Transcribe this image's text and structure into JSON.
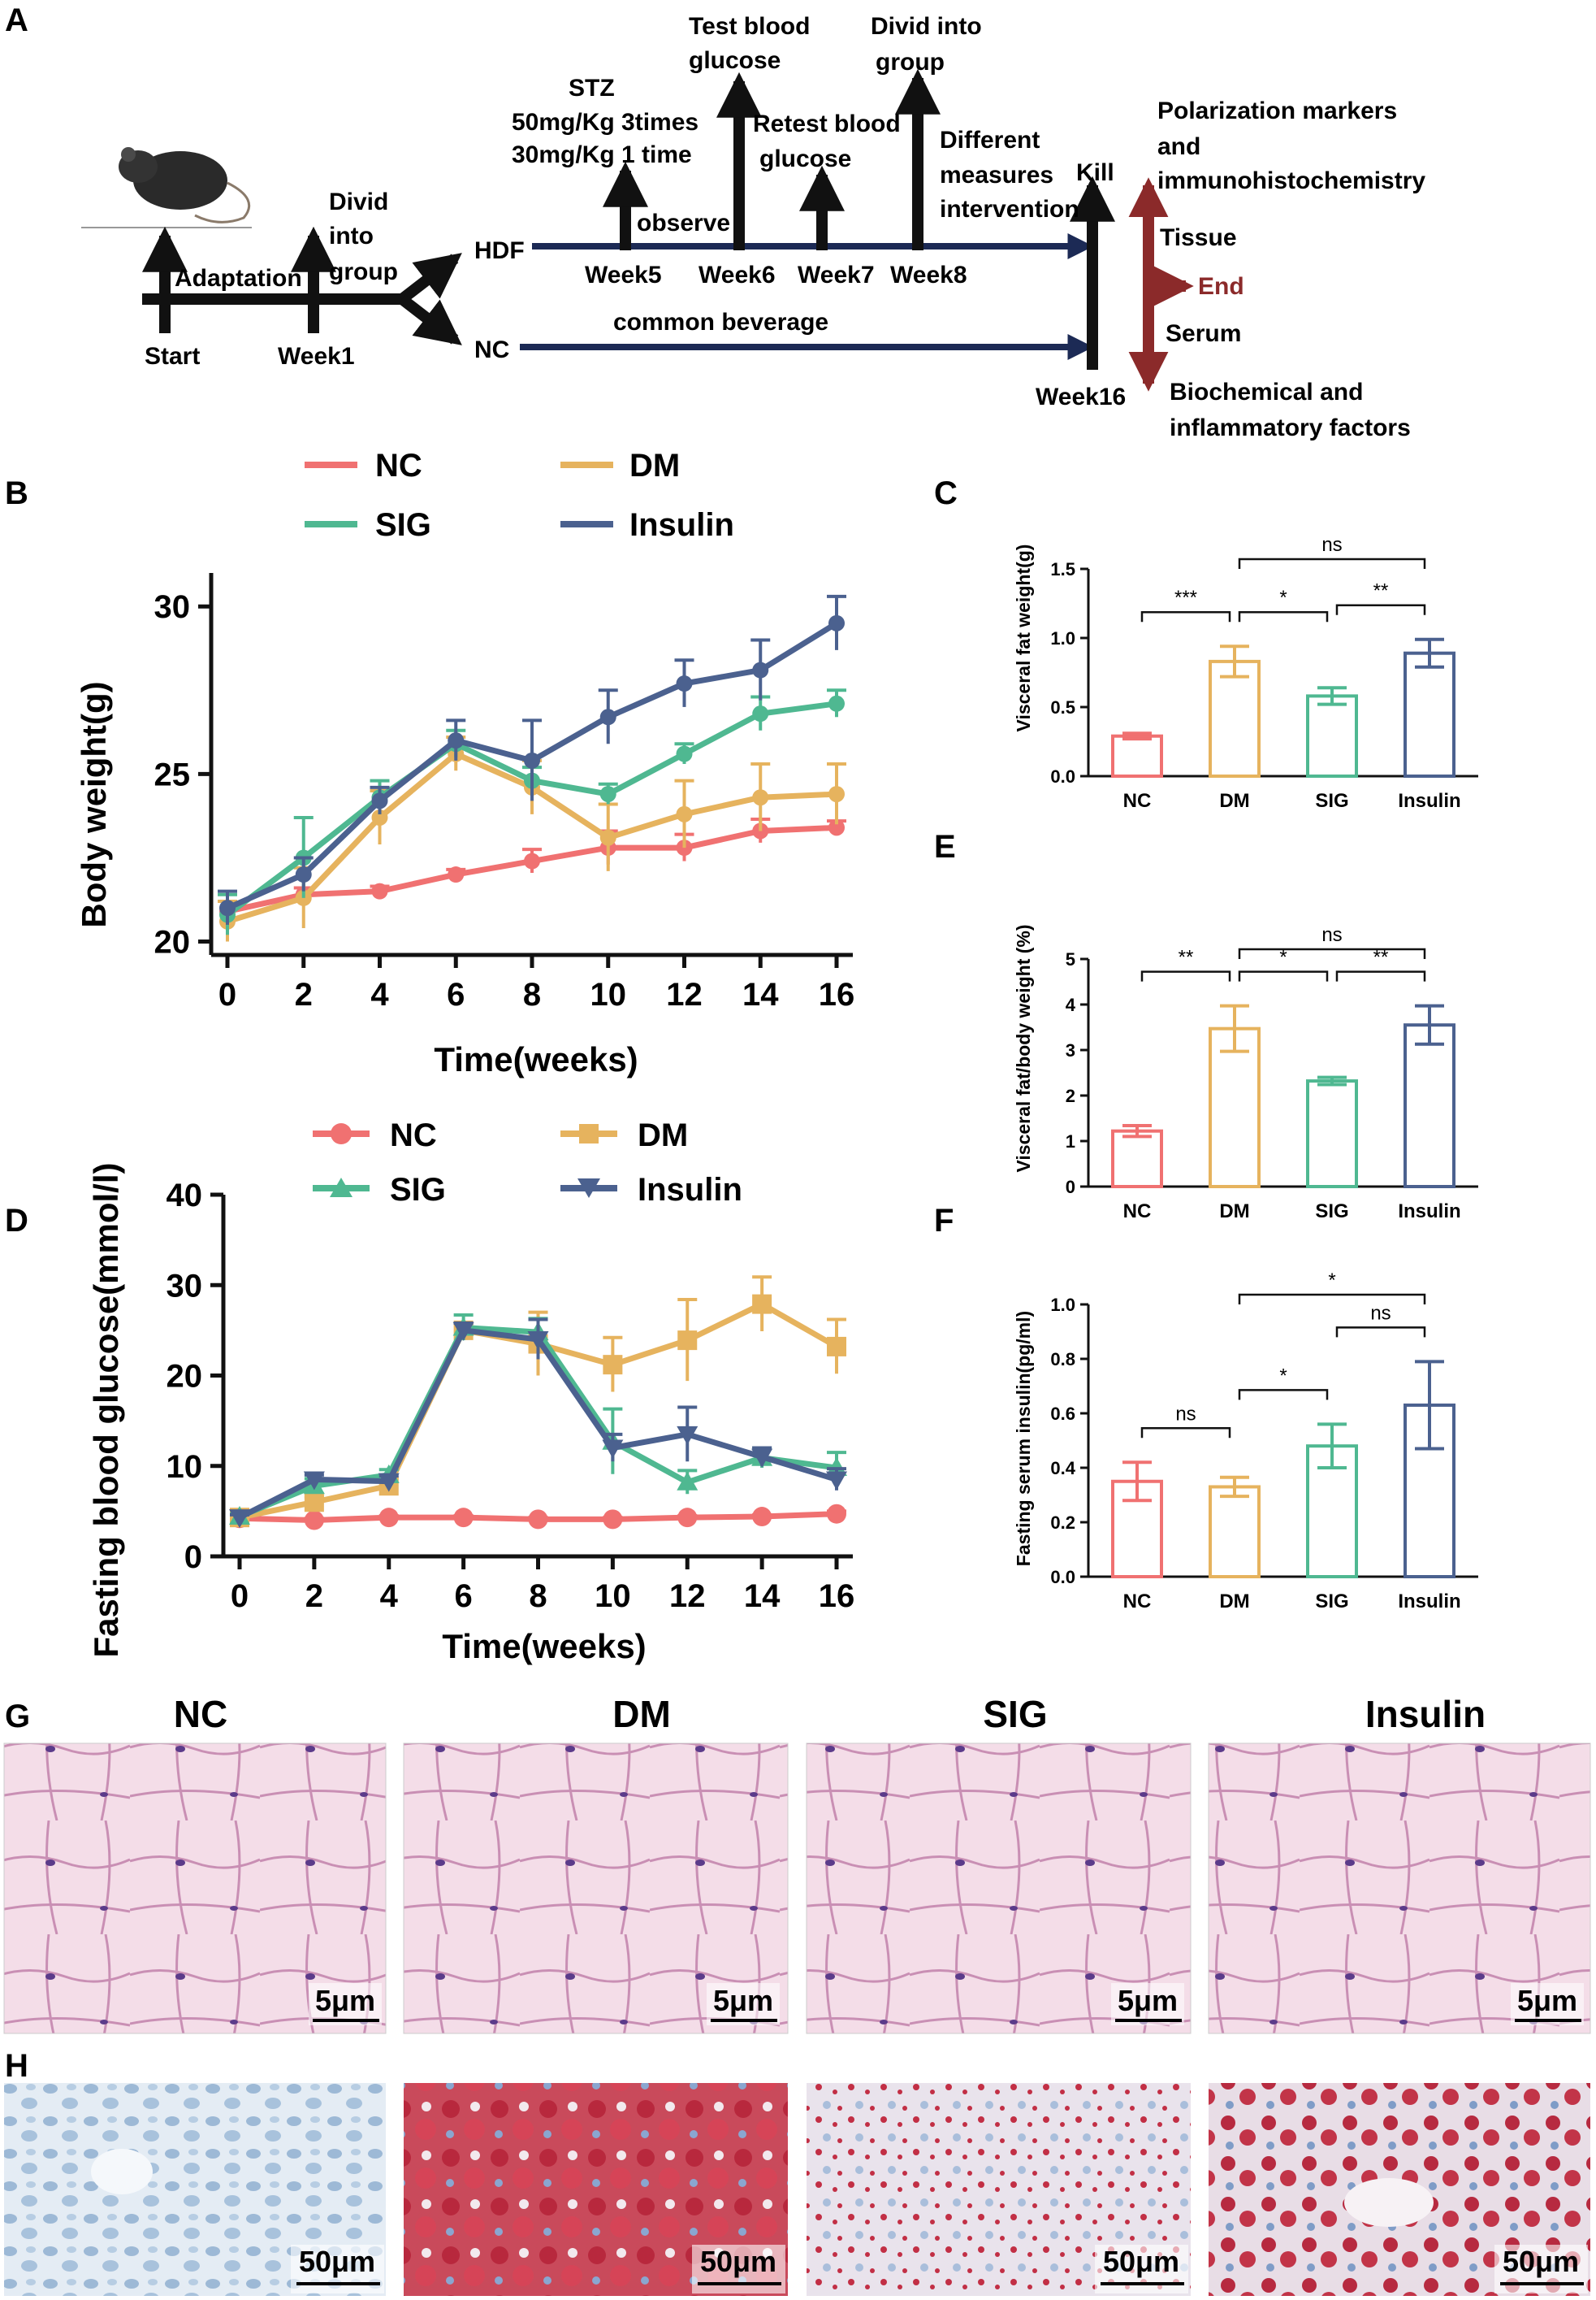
{
  "colors": {
    "NC": "#f07171",
    "DM": "#e6b35e",
    "SIG": "#4fb891",
    "Insulin": "#4b618f",
    "dark_red": "#8b2a2a",
    "navy": "#1c2a55"
  },
  "panel_labels": [
    "A",
    "B",
    "C",
    "D",
    "E",
    "F",
    "G",
    "H"
  ],
  "panel_a": {
    "start": "Start",
    "adaptation": "Adaptation",
    "divid_group": [
      "Divid",
      "into",
      "group"
    ],
    "week1": "Week1",
    "hdf": "HDF",
    "nc": "NC",
    "stz": [
      "STZ",
      "50mg/Kg 3times",
      "30mg/Kg 1 time"
    ],
    "observe": "observe",
    "test_glucose": [
      "Test blood",
      "glucose"
    ],
    "retest_glucose": [
      "Retest blood",
      "glucose"
    ],
    "divid_group2": [
      "Divid into",
      "group"
    ],
    "different_measures": [
      "Different",
      "measures",
      "intervention"
    ],
    "kill": "Kill",
    "week5": "Week5",
    "week6": "Week6",
    "week7": "Week7",
    "week8": "Week8",
    "common_beverage": "common beverage",
    "week16": "Week16",
    "polarization": [
      "Polarization markers",
      "and",
      "immunohistochemistry"
    ],
    "tissue": "Tissue",
    "end": "End",
    "serum": "Serum",
    "biochemical": [
      "Biochemical and",
      "inflammatory factors"
    ]
  },
  "chart_data": [
    {
      "id": "B",
      "type": "line",
      "title": "",
      "xlabel": "Time(weeks)",
      "ylabel": "Body weight(g)",
      "x": [
        0,
        2,
        4,
        6,
        8,
        10,
        12,
        14,
        16
      ],
      "xticks": [
        "0",
        "2",
        "4",
        "6",
        "8",
        "10",
        "12",
        "14",
        "16"
      ],
      "yticks": [
        "20",
        "25",
        "30"
      ],
      "ylim": [
        19.6,
        31
      ],
      "legend": [
        "NC",
        "DM",
        "SIG",
        "Insulin"
      ],
      "series": [
        {
          "name": "NC",
          "values": [
            20.9,
            21.4,
            21.5,
            22.0,
            22.4,
            22.8,
            22.8,
            23.3,
            23.4
          ],
          "err": [
            0.3,
            0.2,
            0.15,
            0.15,
            0.35,
            0.5,
            0.4,
            0.35,
            0.2
          ]
        },
        {
          "name": "DM",
          "values": [
            20.6,
            21.3,
            23.7,
            25.6,
            24.6,
            23.1,
            23.8,
            24.3,
            24.4
          ],
          "err": [
            0.6,
            0.9,
            0.8,
            0.5,
            0.8,
            1.0,
            1.0,
            1.0,
            0.9
          ]
        },
        {
          "name": "SIG",
          "values": [
            20.8,
            22.5,
            24.3,
            25.9,
            24.8,
            24.4,
            25.6,
            26.8,
            27.1
          ],
          "err": [
            0.6,
            1.2,
            0.5,
            0.4,
            0.4,
            0.3,
            0.3,
            0.5,
            0.4
          ]
        },
        {
          "name": "Insulin",
          "values": [
            21.0,
            22.0,
            24.2,
            26.0,
            25.4,
            26.7,
            27.7,
            28.1,
            29.5
          ],
          "err": [
            0.5,
            0.5,
            0.4,
            0.6,
            1.2,
            0.8,
            0.7,
            0.9,
            0.8
          ]
        }
      ]
    },
    {
      "id": "C",
      "type": "bar",
      "categories": [
        "NC",
        "DM",
        "SIG",
        "Insulin"
      ],
      "values": [
        0.29,
        0.83,
        0.58,
        0.89
      ],
      "err": [
        0.02,
        0.11,
        0.06,
        0.1
      ],
      "ylabel": "Visceral fat weight(g)",
      "ylim": [
        0,
        1.5
      ],
      "yticks": [
        "0.0",
        "0.5",
        "1.0",
        "1.5"
      ],
      "significance": [
        {
          "from": 0,
          "to": 1,
          "label": "***"
        },
        {
          "from": 1,
          "to": 2,
          "label": "*"
        },
        {
          "from": 2,
          "to": 3,
          "label": "**"
        },
        {
          "from": 1,
          "to": 3,
          "label": "ns"
        }
      ]
    },
    {
      "id": "D",
      "type": "bar",
      "categories": [
        "NC",
        "DM",
        "SIG",
        "Insulin"
      ],
      "values": [
        1.22,
        3.47,
        2.32,
        3.55
      ],
      "err": [
        0.12,
        0.5,
        0.08,
        0.42
      ],
      "ylabel": "Visceral fat/body weight (%)",
      "ylim": [
        0,
        5
      ],
      "yticks": [
        "0",
        "1",
        "2",
        "3",
        "4",
        "5"
      ],
      "significance": [
        {
          "from": 0,
          "to": 1,
          "label": "**"
        },
        {
          "from": 1,
          "to": 2,
          "label": "*"
        },
        {
          "from": 2,
          "to": 3,
          "label": "**"
        },
        {
          "from": 1,
          "to": 3,
          "label": "ns"
        }
      ]
    },
    {
      "id": "E",
      "type": "line",
      "title": "",
      "xlabel": "Time(weeks)",
      "ylabel": "Fasting blood glucose(mmol/l)",
      "x": [
        0,
        2,
        4,
        6,
        8,
        10,
        12,
        14,
        16
      ],
      "xticks": [
        "0",
        "2",
        "4",
        "6",
        "8",
        "10",
        "12",
        "14",
        "16"
      ],
      "yticks": [
        "0",
        "10",
        "20",
        "30",
        "40"
      ],
      "ylim": [
        0,
        40
      ],
      "legend": [
        "NC",
        "DM",
        "SIG",
        "Insulin"
      ],
      "series": [
        {
          "name": "NC",
          "values": [
            4.2,
            4.0,
            4.3,
            4.3,
            4.1,
            4.1,
            4.3,
            4.4,
            4.7
          ],
          "err": [
            0.2,
            0.2,
            0.2,
            0.2,
            0.2,
            0.2,
            0.2,
            0.2,
            0.3
          ]
        },
        {
          "name": "DM",
          "values": [
            4.3,
            6.0,
            7.8,
            25.0,
            23.5,
            21.2,
            23.9,
            27.9,
            23.2
          ],
          "err": [
            0.3,
            0.6,
            0.8,
            0.8,
            3.5,
            3.0,
            4.5,
            3.0,
            3.0
          ]
        },
        {
          "name": "SIG",
          "values": [
            4.4,
            7.8,
            9.0,
            25.3,
            24.8,
            12.7,
            8.2,
            10.9,
            9.8
          ],
          "err": [
            0.3,
            0.8,
            0.6,
            1.4,
            1.5,
            3.6,
            1.3,
            1.1,
            1.7
          ]
        },
        {
          "name": "Insulin",
          "values": [
            4.3,
            8.5,
            8.3,
            25.0,
            24.0,
            12.0,
            13.5,
            11.0,
            8.5
          ],
          "err": [
            0.3,
            0.5,
            0.6,
            0.8,
            2.2,
            1.5,
            3.0,
            1.0,
            1.2
          ]
        }
      ]
    },
    {
      "id": "F",
      "type": "bar",
      "categories": [
        "NC",
        "DM",
        "SIG",
        "Insulin"
      ],
      "values": [
        0.35,
        0.33,
        0.48,
        0.63
      ],
      "err": [
        0.07,
        0.035,
        0.08,
        0.16
      ],
      "ylabel": "Fasting serum insulin(pg/ml)",
      "ylim": [
        0,
        1.0
      ],
      "yticks": [
        "0.0",
        "0.2",
        "0.4",
        "0.6",
        "0.8",
        "1.0"
      ],
      "significance": [
        {
          "from": 0,
          "to": 1,
          "label": "ns"
        },
        {
          "from": 1,
          "to": 2,
          "label": "*"
        },
        {
          "from": 2,
          "to": 3,
          "label": "ns"
        },
        {
          "from": 1,
          "to": 3,
          "label": "*"
        }
      ]
    }
  ],
  "panel_g": {
    "titles": [
      "NC",
      "DM",
      "SIG",
      "Insulin"
    ],
    "scale": "5μm"
  },
  "panel_h": {
    "scale": "50μm"
  }
}
